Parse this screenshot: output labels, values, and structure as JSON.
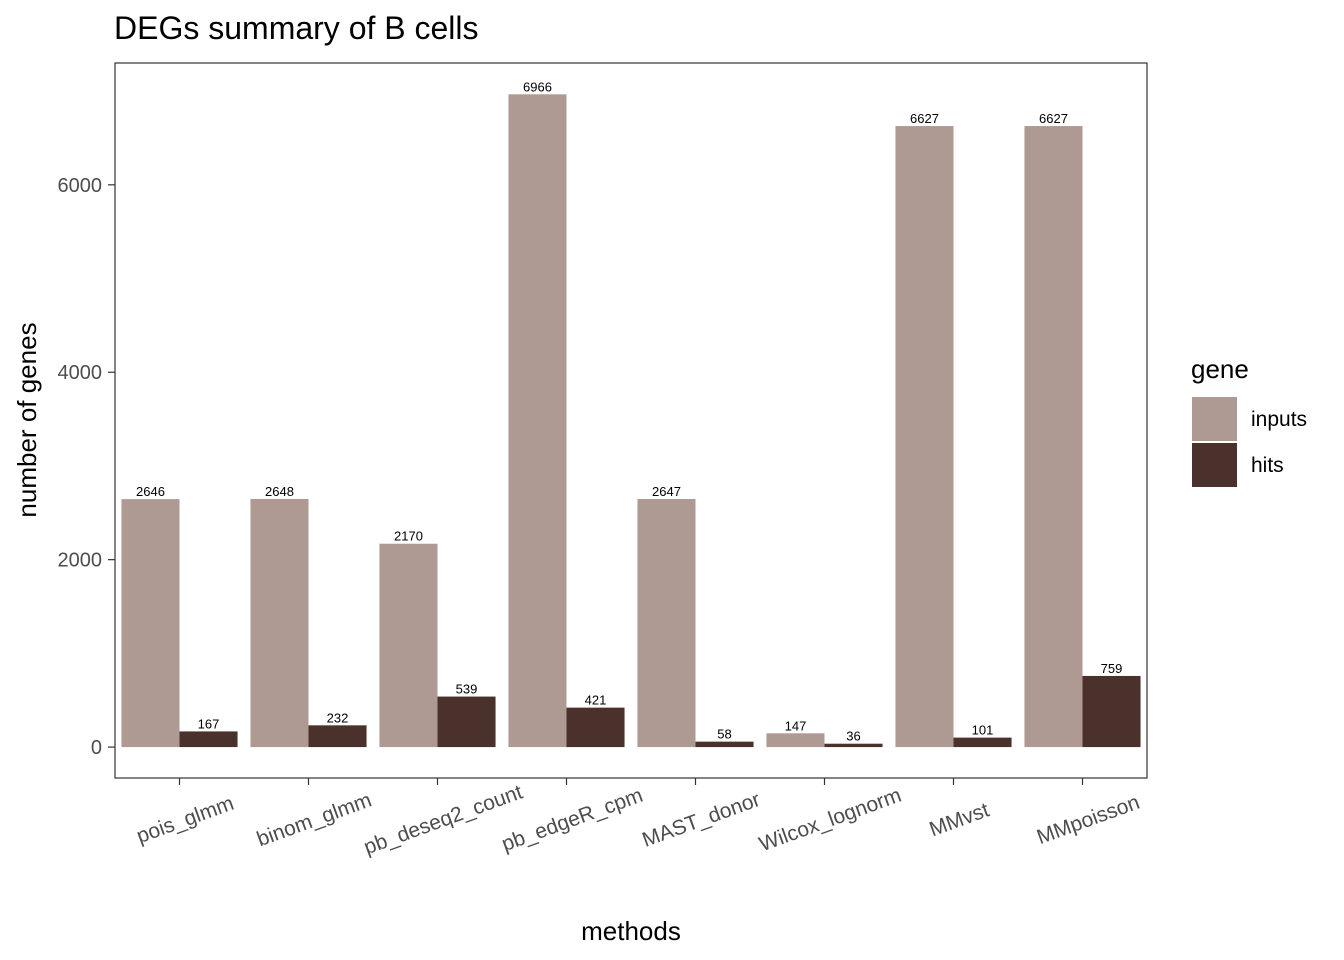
{
  "chart_data": {
    "type": "bar",
    "title": "DEGs summary of  B cells",
    "xlabel": "methods",
    "ylabel": "number of genes",
    "categories": [
      "pois_glmm",
      "binom_glmm",
      "pb_deseq2_count",
      "pb_edgeR_cpm",
      "MAST_donor",
      "Wilcox_lognorm",
      "MMvst",
      "MMpoisson"
    ],
    "series": [
      {
        "name": "inputs",
        "color": "#ae9a93",
        "values": [
          2646,
          2648,
          2170,
          6966,
          2647,
          147,
          6627,
          6627
        ]
      },
      {
        "name": "hits",
        "color": "#4b312b",
        "values": [
          167,
          232,
          539,
          421,
          58,
          36,
          101,
          759
        ]
      }
    ],
    "ylim": [
      -330,
      7300
    ],
    "yticks": [
      0,
      2000,
      4000,
      6000
    ],
    "grid": false,
    "legend": {
      "title": "gene",
      "position": "right"
    }
  }
}
